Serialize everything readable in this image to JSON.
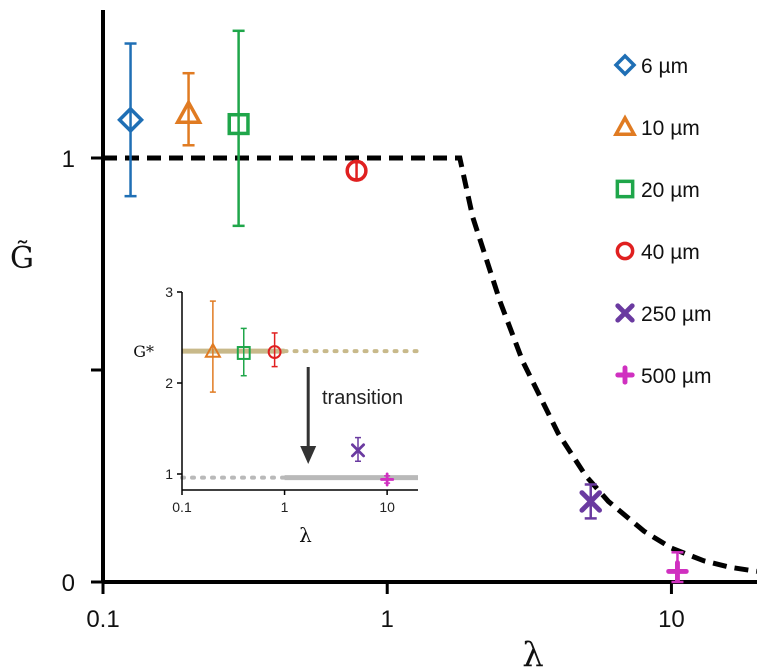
{
  "chart_data": [
    {
      "type": "scatter",
      "xscale": "log",
      "xlim": [
        0.1,
        20
      ],
      "ylim": [
        0,
        1.35
      ],
      "x_ticks": [
        {
          "value": 0.1,
          "label": "0.1"
        },
        {
          "value": 1,
          "label": "1"
        },
        {
          "value": 10,
          "label": "10"
        }
      ],
      "y_ticks": [
        {
          "value": 0,
          "label": "0"
        },
        {
          "value": 0.5,
          "label": ""
        },
        {
          "value": 1,
          "label": "1"
        }
      ],
      "xlabel": "λ",
      "ylabel": "G̃",
      "legend_position": "right",
      "series": [
        {
          "name": "6 µm",
          "marker": "diamond",
          "color": "#1f6fb5",
          "x": 0.125,
          "y": 1.09,
          "err_low": 0.91,
          "err_high": 1.27
        },
        {
          "name": "10 µm",
          "marker": "triangle",
          "color": "#e07b22",
          "x": 0.2,
          "y": 1.105,
          "err_low": 1.03,
          "err_high": 1.2
        },
        {
          "name": "20 µm",
          "marker": "square",
          "color": "#1fa64a",
          "x": 0.3,
          "y": 1.08,
          "err_low": 0.84,
          "err_high": 1.3
        },
        {
          "name": "40 µm",
          "marker": "circle",
          "color": "#e02020",
          "x": 0.78,
          "y": 0.97,
          "err_low": 0.95,
          "err_high": 0.99
        },
        {
          "name": "250 µm",
          "marker": "x",
          "color": "#6a3aa0",
          "x": 5.2,
          "y": 0.19,
          "err_low": 0.15,
          "err_high": 0.23
        },
        {
          "name": "500 µm",
          "marker": "plus",
          "color": "#d030c0",
          "x": 10.5,
          "y": 0.025,
          "err_low": 0.0,
          "err_high": 0.07
        }
      ],
      "model_curve": {
        "style": "dashed",
        "color": "#000000",
        "description_free": true,
        "plateau_value": 1,
        "break_x": 1.8,
        "points": [
          [
            0.1,
            1
          ],
          [
            1.8,
            1
          ],
          [
            2,
            0.86
          ],
          [
            2.5,
            0.66
          ],
          [
            3,
            0.52
          ],
          [
            4,
            0.35
          ],
          [
            5,
            0.25
          ],
          [
            6,
            0.19
          ],
          [
            8,
            0.12
          ],
          [
            10,
            0.08
          ],
          [
            13,
            0.05
          ],
          [
            16,
            0.035
          ],
          [
            20,
            0.025
          ]
        ]
      }
    },
    {
      "type": "scatter",
      "inset": true,
      "xscale": "log",
      "xlim": [
        0.1,
        20
      ],
      "ylim": [
        0.85,
        3
      ],
      "x_ticks": [
        {
          "value": 0.1,
          "label": "0.1"
        },
        {
          "value": 1,
          "label": "1"
        },
        {
          "value": 10,
          "label": "10"
        }
      ],
      "y_ticks": [
        {
          "value": 1,
          "label": "1"
        },
        {
          "value": 2,
          "label": "2"
        },
        {
          "value": 3,
          "label": "3"
        }
      ],
      "xlabel": "λ",
      "y_marker_label": "G*",
      "g_star": 2.35,
      "annotation": "transition",
      "series": [
        {
          "name": "10 µm",
          "marker": "triangle",
          "color": "#e07b22",
          "x": 0.2,
          "y": 2.35,
          "err_low": 1.9,
          "err_high": 2.9
        },
        {
          "name": "20 µm",
          "marker": "square",
          "color": "#1fa64a",
          "x": 0.4,
          "y": 2.33,
          "err_low": 2.08,
          "err_high": 2.6
        },
        {
          "name": "40 µm",
          "marker": "circle",
          "color": "#e02020",
          "x": 0.8,
          "y": 2.34,
          "err_low": 2.18,
          "err_high": 2.55
        },
        {
          "name": "250 µm",
          "marker": "x",
          "color": "#6a3aa0",
          "x": 5.2,
          "y": 1.26,
          "err_low": 1.14,
          "err_high": 1.4
        },
        {
          "name": "500 µm",
          "marker": "plus",
          "color": "#d030c0",
          "x": 10,
          "y": 0.94,
          "err_low": 0.9,
          "err_high": 0.98
        }
      ]
    }
  ],
  "legend": [
    {
      "label": "6 µm",
      "marker": "diamond",
      "color": "#1f6fb5"
    },
    {
      "label": "10 µm",
      "marker": "triangle",
      "color": "#e07b22"
    },
    {
      "label": "20 µm",
      "marker": "square",
      "color": "#1fa64a"
    },
    {
      "label": "40 µm",
      "marker": "circle",
      "color": "#e02020"
    },
    {
      "label": "250 µm",
      "marker": "x",
      "color": "#6a3aa0"
    },
    {
      "label": "500 µm",
      "marker": "plus",
      "color": "#d030c0"
    }
  ],
  "colors": {
    "axis": "#000000",
    "inset_high_line": "#c8b98a",
    "inset_low_line": "#b9b9b9"
  }
}
